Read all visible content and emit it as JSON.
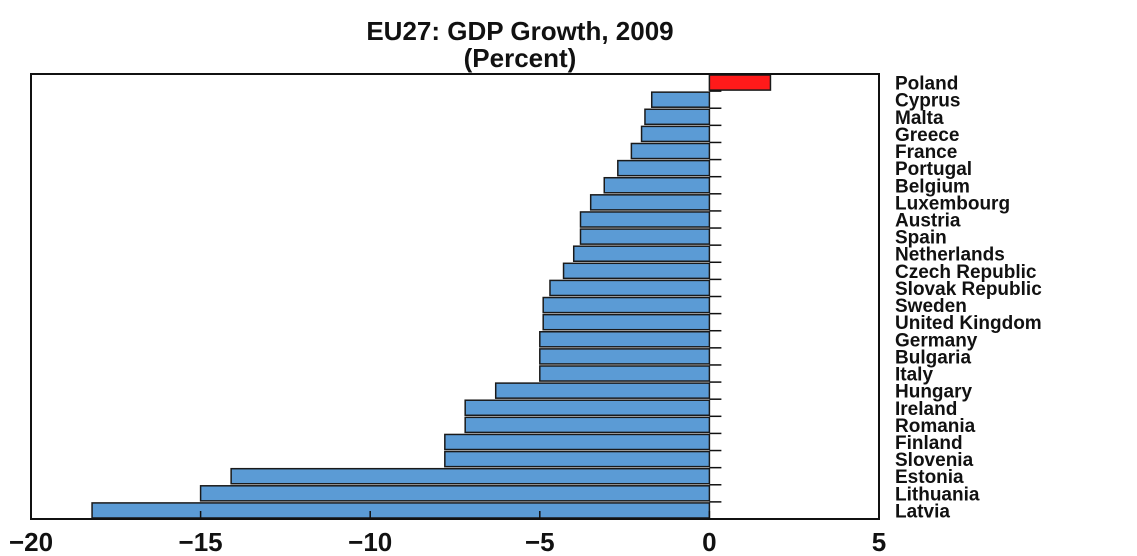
{
  "chart_data": {
    "type": "bar",
    "orientation": "horizontal",
    "title": "EU27: GDP Growth, 2009",
    "subtitle": "(Percent)",
    "categories": [
      "Poland",
      "Cyprus",
      "Malta",
      "Greece",
      "France",
      "Portugal",
      "Belgium",
      "Luxembourg",
      "Austria",
      "Spain",
      "Netherlands",
      "Czech Republic",
      "Slovak Republic",
      "Sweden",
      "United Kingdom",
      "Germany",
      "Bulgaria",
      "Italy",
      "Hungary",
      "Ireland",
      "Romania",
      "Finland",
      "Slovenia",
      "Estonia",
      "Lithuania",
      "Latvia"
    ],
    "values": [
      1.8,
      -1.7,
      -1.9,
      -2.0,
      -2.3,
      -2.7,
      -3.1,
      -3.5,
      -3.8,
      -3.8,
      -4.0,
      -4.3,
      -4.7,
      -4.9,
      -4.9,
      -5.0,
      -5.0,
      -5.0,
      -6.3,
      -7.2,
      -7.2,
      -7.8,
      -7.8,
      -14.1,
      -15.0,
      -18.2
    ],
    "bar_colors": {
      "default": "#5b9bd5",
      "highlight": "#ff1a1a",
      "highlight_category": "Poland"
    },
    "xlim": [
      -20,
      5
    ],
    "xticks": [
      "-20",
      "-15",
      "-10",
      "-5",
      "0",
      "5"
    ],
    "xlabel": "",
    "ylabel": "",
    "grid": false,
    "legend": "none"
  }
}
